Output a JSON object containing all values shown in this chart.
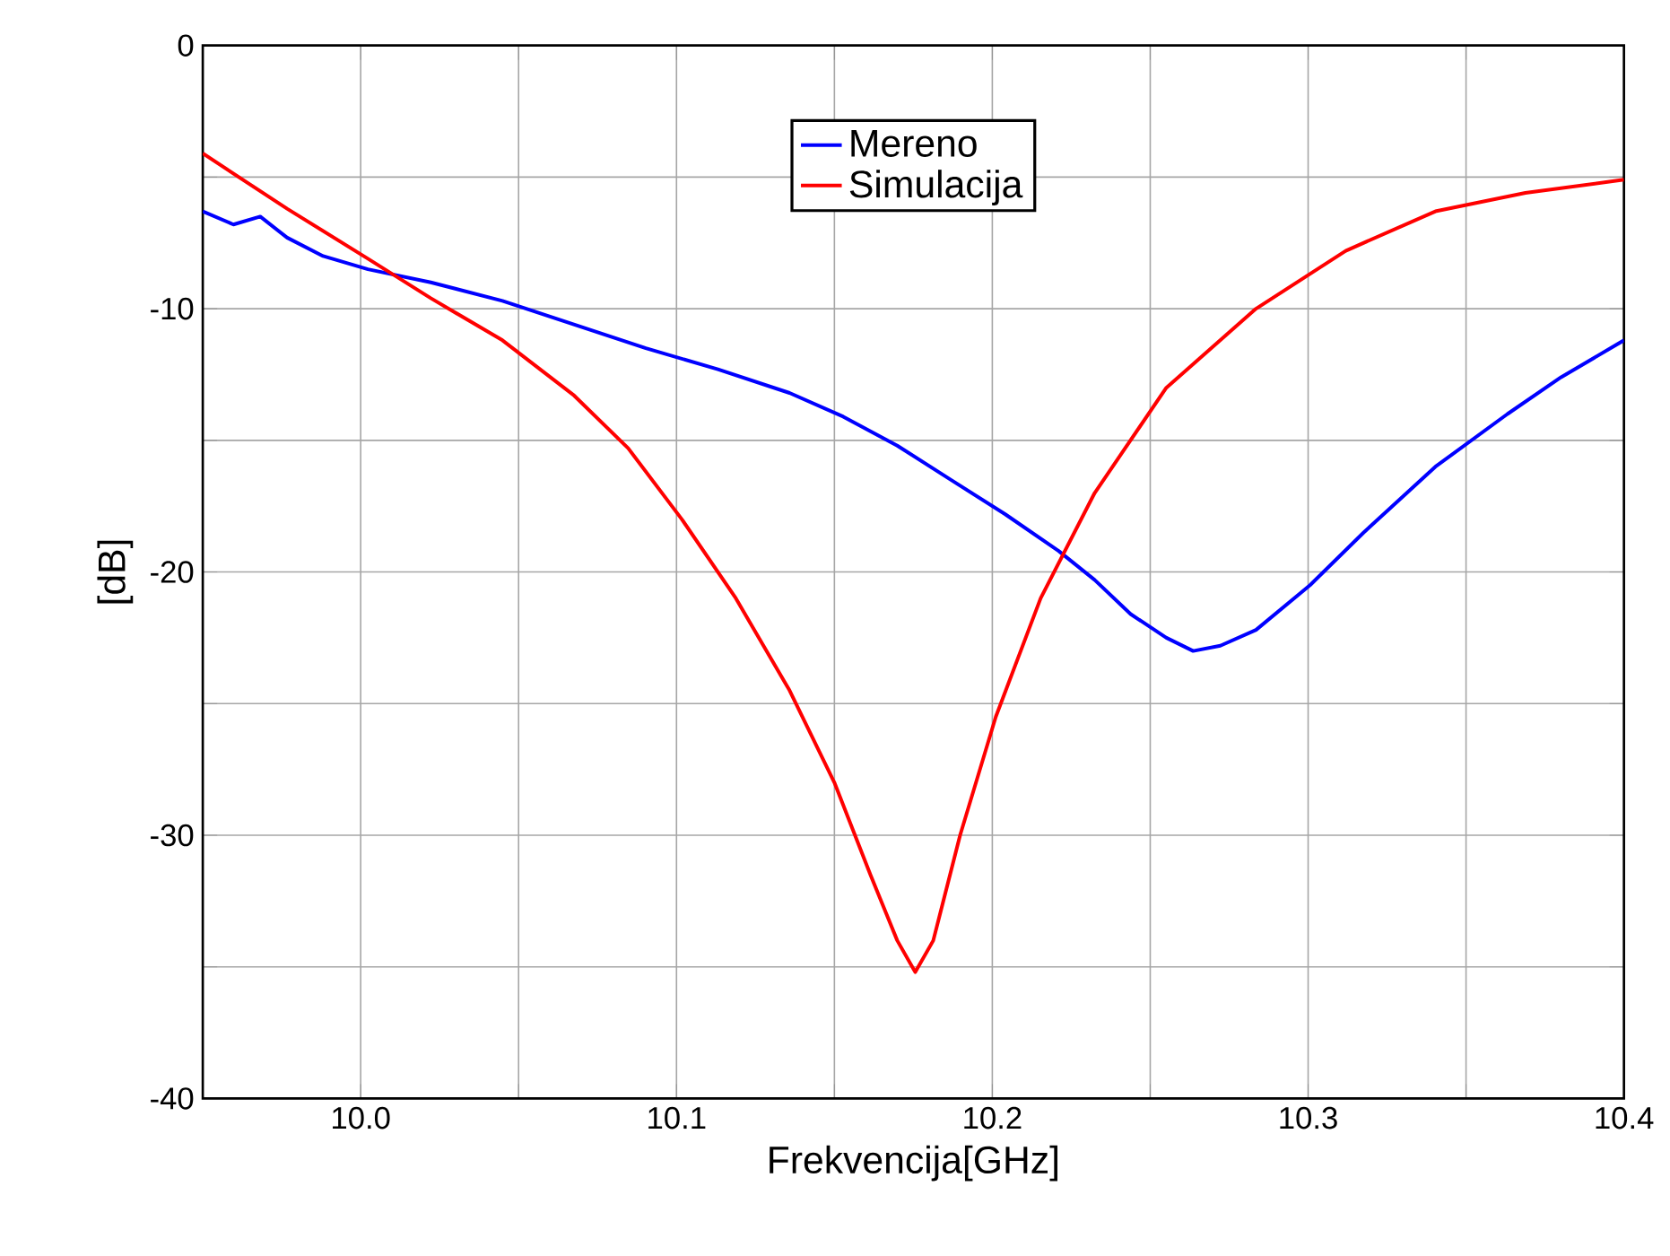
{
  "chart_data": {
    "type": "line",
    "xlabel": "Frekvencija[GHz]",
    "ylabel": "[dB]",
    "xlim": [
      9.95,
      10.4
    ],
    "ylim": [
      -40,
      0
    ],
    "xticks": [
      {
        "value": 9.95,
        "label": null
      },
      {
        "value": 10.0,
        "label": "10.0"
      },
      {
        "value": 10.05,
        "label": null
      },
      {
        "value": 10.1,
        "label": "10.1"
      },
      {
        "value": 10.15,
        "label": null
      },
      {
        "value": 10.2,
        "label": "10.2"
      },
      {
        "value": 10.25,
        "label": null
      },
      {
        "value": 10.3,
        "label": "10.3"
      },
      {
        "value": 10.35,
        "label": null
      },
      {
        "value": 10.4,
        "label": "10.4"
      }
    ],
    "yticks": [
      -40,
      {
        "value": -35,
        "label": null
      },
      -30,
      {
        "value": -25,
        "label": null
      },
      -20,
      {
        "value": -15,
        "label": null
      },
      -10,
      {
        "value": -5,
        "label": null
      },
      0
    ],
    "grid": true,
    "legend": "top",
    "line_style": "solid",
    "marker": "none",
    "series": [
      {
        "name": "Mereno",
        "color": "#0000ff",
        "x": [
          9.95,
          9.9597,
          9.9682,
          9.9767,
          9.9881,
          10.0023,
          10.0222,
          10.0449,
          10.0676,
          10.0903,
          10.1131,
          10.1358,
          10.1528,
          10.1699,
          10.1869,
          10.204,
          10.221,
          10.2324,
          10.2438,
          10.2551,
          10.2636,
          10.2722,
          10.2835,
          10.3006,
          10.3176,
          10.3403,
          10.3631,
          10.3801,
          10.4
        ],
        "values": [
          -6.3,
          -6.8,
          -6.5,
          -7.3,
          -8.0,
          -8.5,
          -9.0,
          -9.7,
          -10.6,
          -11.5,
          -12.3,
          -13.2,
          -14.1,
          -15.2,
          -16.5,
          -17.8,
          -19.2,
          -20.3,
          -21.6,
          -22.5,
          -23.0,
          -22.8,
          -22.2,
          -20.5,
          -18.5,
          -16.0,
          -14.0,
          -12.6,
          -11.2
        ]
      },
      {
        "name": "Simulacija",
        "color": "#ff0000",
        "x": [
          9.95,
          9.9767,
          10.0023,
          10.0222,
          10.0449,
          10.0676,
          10.0847,
          10.1017,
          10.1188,
          10.1358,
          10.15,
          10.1614,
          10.1699,
          10.1756,
          10.1813,
          10.1898,
          10.2011,
          10.2153,
          10.2324,
          10.2551,
          10.2835,
          10.3119,
          10.3403,
          10.3688,
          10.4
        ],
        "values": [
          -4.1,
          -6.2,
          -8.1,
          -9.6,
          -11.2,
          -13.3,
          -15.3,
          -18.0,
          -21.0,
          -24.5,
          -28.0,
          -31.5,
          -34.0,
          -35.2,
          -34.0,
          -30.0,
          -25.5,
          -21.0,
          -17.0,
          -13.0,
          -10.0,
          -7.8,
          -6.3,
          -5.6,
          -5.1
        ]
      }
    ]
  }
}
